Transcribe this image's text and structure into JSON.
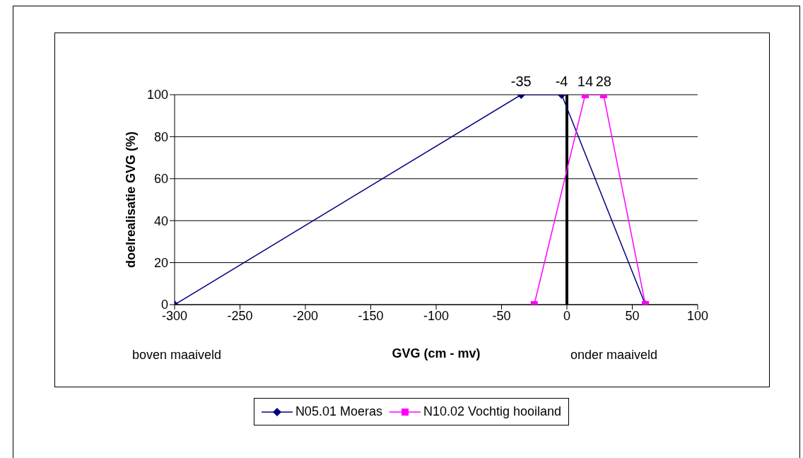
{
  "chart_data": {
    "type": "line",
    "xlabel": "GVG (cm - mv)",
    "ylabel": "doelrealisatie GVG (%)",
    "xlim": [
      -300,
      100
    ],
    "xticks": [
      -300,
      -250,
      -200,
      -150,
      -100,
      -50,
      0,
      50,
      100
    ],
    "ylim": [
      0,
      100
    ],
    "yticks": [
      0,
      20,
      40,
      60,
      80,
      100
    ],
    "grid": "y",
    "legend": "bottom",
    "series": [
      {
        "name": "N05.01 Moeras",
        "color": "#000080",
        "marker": "diamond",
        "x": [
          -300,
          -35,
          -4,
          60
        ],
        "values": [
          0,
          100,
          100,
          0
        ]
      },
      {
        "name": "N10.02 Vochtig hooiland",
        "color": "#ff00ff",
        "marker": "square",
        "x": [
          -25,
          14,
          28,
          60
        ],
        "values": [
          0,
          100,
          100,
          0
        ]
      }
    ],
    "ref_lines": [
      {
        "axis": "x",
        "value": 0,
        "color": "#000000"
      }
    ],
    "annotations": [
      {
        "text": "-35",
        "x": -35,
        "y": 100
      },
      {
        "text": "-4",
        "x": -4,
        "y": 100
      },
      {
        "text": "14",
        "x": 14,
        "y": 100
      },
      {
        "text": "28",
        "x": 28,
        "y": 100
      },
      "boven maaiveld",
      "onder maaiveld"
    ]
  }
}
